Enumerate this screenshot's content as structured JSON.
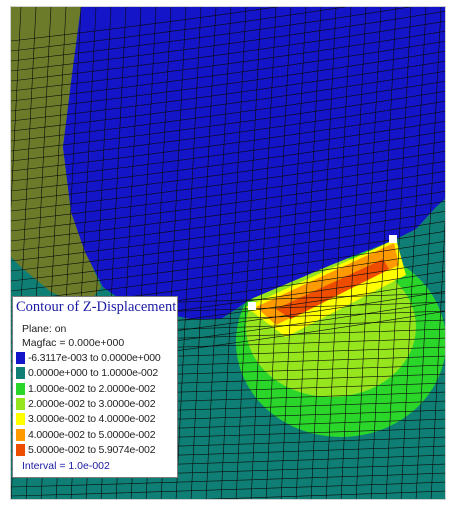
{
  "legend": {
    "title": "Contour of Z-Displacement",
    "plane": "Plane: on",
    "magfac": "Magfac =  0.000e+000",
    "interval": "Interval =  1.0e-002",
    "ranges": [
      {
        "label": "-6.3117e-003 to  0.0000e+000",
        "color": "#1414c8"
      },
      {
        "label": "0.0000e+000 to  1.0000e-002",
        "color": "#0f7f75"
      },
      {
        "label": "1.0000e-002 to  2.0000e-002",
        "color": "#2bd62b"
      },
      {
        "label": "2.0000e-002 to  3.0000e-002",
        "color": "#96e61e"
      },
      {
        "label": "3.0000e-002 to  4.0000e-002",
        "color": "#ffff00"
      },
      {
        "label": "4.0000e-002 to  5.0000e-002",
        "color": "#ff9a00"
      },
      {
        "label": "5.0000e-002 to  5.9074e-002",
        "color": "#ee4d00"
      }
    ]
  },
  "plot": {
    "colors": {
      "background_rock": "#0f7f75",
      "displaced_block": "#1414c8",
      "mesh_line": "#0b0b0b",
      "olive_zone": "#7d7a1c",
      "marker": "#ffffff"
    }
  }
}
